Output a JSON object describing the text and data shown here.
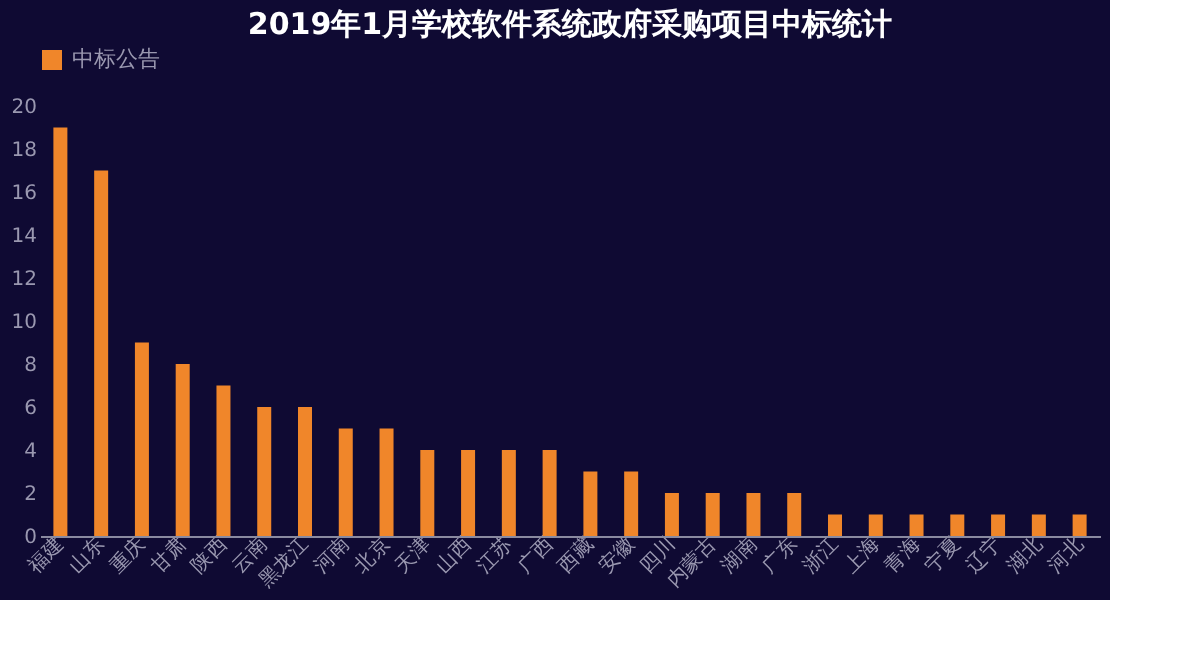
{
  "chart_data": {
    "type": "bar",
    "title": "2019年1月学校软件系统政府采购项目中标统计",
    "categories": [
      "福建",
      "山东",
      "重庆",
      "甘肃",
      "陕西",
      "云南",
      "黑龙江",
      "河南",
      "北京",
      "天津",
      "山西",
      "江苏",
      "广西",
      "西藏",
      "安徽",
      "四川",
      "内蒙古",
      "湖南",
      "广东",
      "浙江",
      "上海",
      "青海",
      "宁夏",
      "辽宁",
      "湖北",
      "河北"
    ],
    "series": [
      {
        "name": "中标公告",
        "color": "#f0862a",
        "values": [
          19,
          17,
          9,
          8,
          7,
          6,
          6,
          5,
          5,
          4,
          4,
          4,
          4,
          3,
          3,
          2,
          2,
          2,
          2,
          1,
          1,
          1,
          1,
          1,
          1,
          1
        ]
      }
    ],
    "ylim": [
      0,
      20
    ],
    "yticks": [
      0,
      2,
      4,
      6,
      8,
      10,
      12,
      14,
      16,
      18,
      20
    ],
    "grid": false,
    "legend": "top"
  }
}
